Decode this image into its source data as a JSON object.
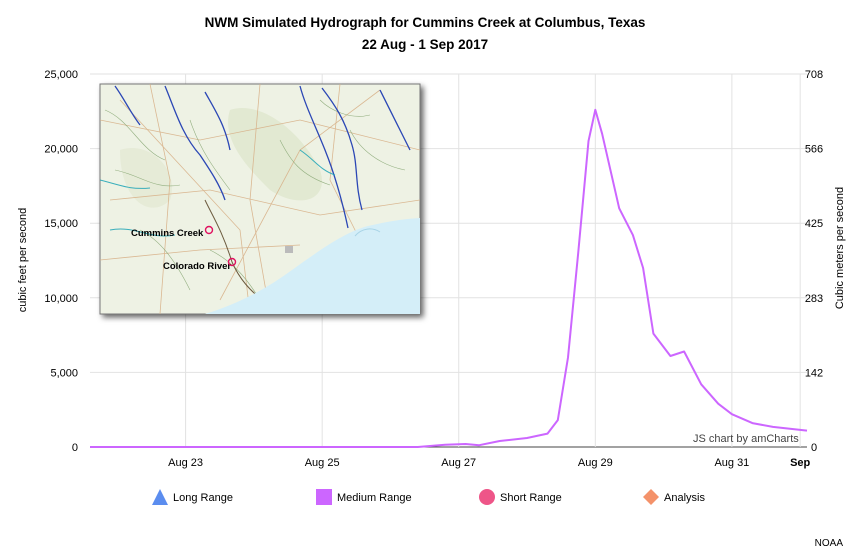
{
  "chart_data": {
    "type": "line",
    "title": "NWM Simulated Hydrograph for Cummins Creek at Columbus, Texas",
    "subtitle": "22 Aug - 1 Sep 2017",
    "ylabel": "cubic feet per second",
    "y2label": "Cubic meters per second",
    "ylim": [
      0,
      25000
    ],
    "y_ticks": [
      "0",
      "5,000",
      "10,000",
      "15,000",
      "20,000",
      "25,000"
    ],
    "y2_ticks": [
      "0",
      "142",
      "283",
      "425",
      "566",
      "708"
    ],
    "xlim": [
      21.6,
      32.1
    ],
    "x_ticks": [
      {
        "label": "Aug 23",
        "x": 23
      },
      {
        "label": "Aug 25",
        "x": 25
      },
      {
        "label": "Aug 27",
        "x": 27
      },
      {
        "label": "Aug 29",
        "x": 29
      },
      {
        "label": "Aug 31",
        "x": 31
      },
      {
        "label": "Sep",
        "x": 32
      }
    ],
    "series": [
      {
        "name": "Medium Range",
        "color": "#cc66ff",
        "x": [
          21.6,
          24.3,
          26.4,
          26.8,
          27.1,
          27.3,
          27.6,
          28.0,
          28.3,
          28.45,
          28.6,
          28.75,
          28.9,
          29.0,
          29.1,
          29.35,
          29.55,
          29.7,
          29.85,
          30.1,
          30.3,
          30.55,
          30.8,
          31.0,
          31.3,
          31.6,
          31.8,
          32.1
        ],
        "values": [
          0,
          0,
          0,
          150,
          200,
          120,
          400,
          600,
          900,
          1800,
          6000,
          13000,
          20500,
          22600,
          21000,
          16000,
          14200,
          12000,
          7600,
          6100,
          6400,
          4200,
          2900,
          2200,
          1600,
          1350,
          1250,
          1100
        ]
      }
    ],
    "legend": [
      {
        "name": "Long Range",
        "marker": "triangle",
        "color": "#5b8def"
      },
      {
        "name": "Medium Range",
        "marker": "square",
        "color": "#cc66ff"
      },
      {
        "name": "Short Range",
        "marker": "circle",
        "color": "#ee5588"
      },
      {
        "name": "Analysis",
        "marker": "diamond",
        "color": "#f4926a"
      }
    ],
    "legend_position": "bottom",
    "grid": true
  },
  "inset_map": {
    "labels": [
      "Cummins Creek",
      "Colorado River"
    ]
  },
  "credit": "JS chart by amCharts",
  "source": "NOAA"
}
